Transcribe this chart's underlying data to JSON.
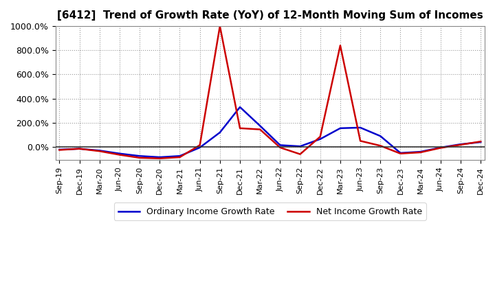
{
  "title": "[6412]  Trend of Growth Rate (YoY) of 12-Month Moving Sum of Incomes",
  "xlabel": "",
  "ylabel": "",
  "ylim": [
    -110,
    1000
  ],
  "yticks": [
    0,
    200,
    400,
    600,
    800,
    1000
  ],
  "ytick_labels": [
    "0.0%",
    "200.0%",
    "400.0%",
    "600.0%",
    "800.0%",
    "1000.0%"
  ],
  "background_color": "#ffffff",
  "plot_bg_color": "#ffffff",
  "grid_color": "#999999",
  "zero_line_color": "#333333",
  "ordinary_color": "#0000cc",
  "net_color": "#cc0000",
  "ordinary_label": "Ordinary Income Growth Rate",
  "net_label": "Net Income Growth Rate",
  "x_labels": [
    "Sep-19",
    "Dec-19",
    "Mar-20",
    "Jun-20",
    "Sep-20",
    "Dec-20",
    "Mar-21",
    "Jun-21",
    "Sep-21",
    "Dec-21",
    "Mar-22",
    "Jun-22",
    "Sep-22",
    "Dec-22",
    "Mar-23",
    "Jun-23",
    "Sep-23",
    "Dec-23",
    "Mar-24",
    "Jun-24",
    "Sep-24",
    "Dec-24"
  ],
  "ordinary_values": [
    -22,
    -15,
    -30,
    -55,
    -75,
    -85,
    -75,
    -5,
    120,
    330,
    175,
    15,
    5,
    65,
    155,
    160,
    90,
    -50,
    -40,
    -5,
    22,
    40
  ],
  "net_values": [
    -25,
    -15,
    -35,
    -65,
    -90,
    -95,
    -85,
    15,
    1000,
    155,
    145,
    -5,
    -60,
    85,
    840,
    50,
    10,
    -55,
    -45,
    -8,
    18,
    45
  ]
}
